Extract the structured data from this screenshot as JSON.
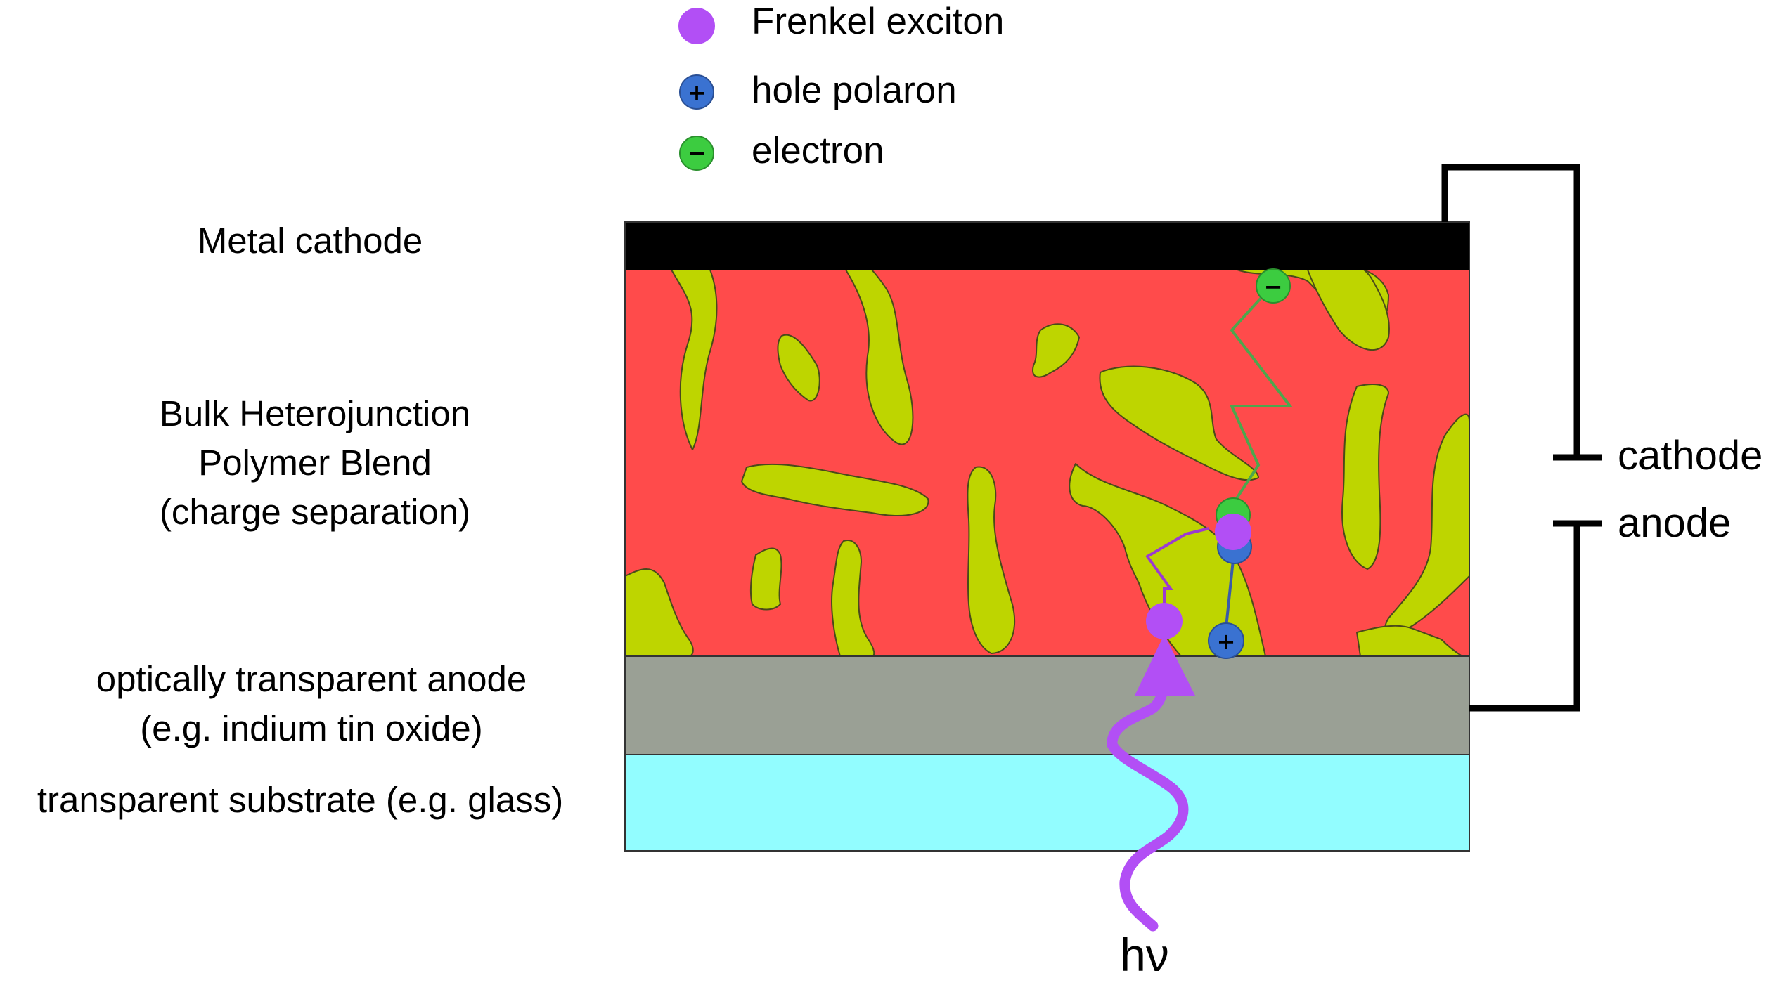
{
  "legend": {
    "exciton_label": "Frenkel exciton",
    "hole_label": "hole polaron",
    "electron_label": "electron",
    "plus_symbol": "+",
    "minus_symbol": "−"
  },
  "layers": {
    "cathode": "Metal cathode",
    "blend_line1": "Bulk Heterojunction",
    "blend_line2": "Polymer Blend",
    "blend_line3": "(charge separation)",
    "anode_line1": "optically transparent anode",
    "anode_line2": "(e.g. indium tin oxide)",
    "substrate": "transparent substrate (e.g. glass)"
  },
  "circuit": {
    "cathode_label": "cathode",
    "anode_label": "anode"
  },
  "photon": {
    "label": "hν"
  },
  "colors": {
    "cathode": "#000000",
    "blend_matrix": "#ff4b4b",
    "blend_domains": "#bed500",
    "anode": "#9aa095",
    "substrate": "#92fdff",
    "exciton": "#b24ff5",
    "hole": "#3a72d1",
    "electron": "#3ccc40",
    "electron_path": "#4da64d",
    "hole_path": "#3a5ba8",
    "exciton_path": "#9b3ad1"
  }
}
